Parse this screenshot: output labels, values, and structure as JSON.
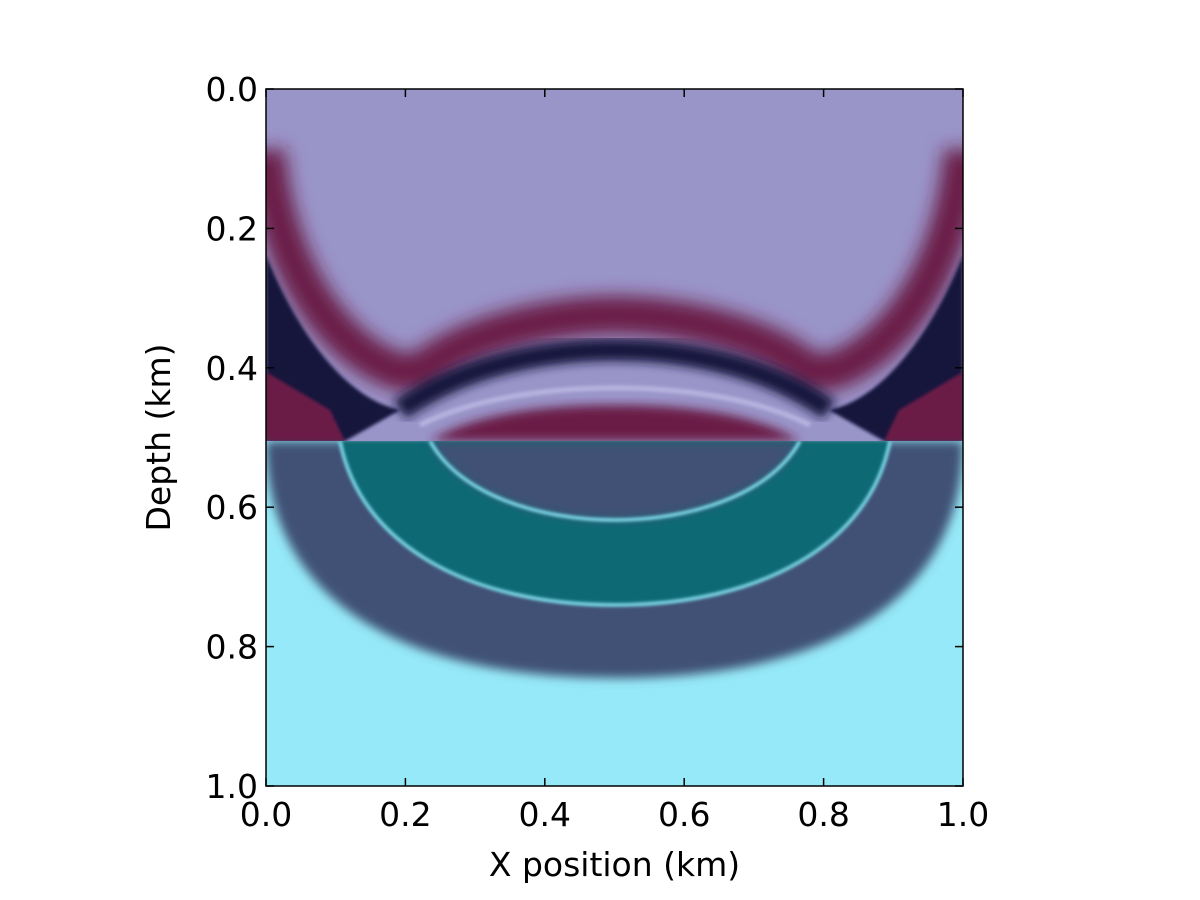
{
  "chart_data": {
    "type": "heatmap",
    "title": "",
    "xlabel": "X position (km)",
    "ylabel": "Depth (km)",
    "xlim": [
      0.0,
      1.0
    ],
    "ylim": [
      1.0,
      0.0
    ],
    "y_inverted": true,
    "x_ticks": [
      "0.0",
      "0.2",
      "0.4",
      "0.6",
      "0.8",
      "1.0"
    ],
    "y_ticks": [
      "0.0",
      "0.2",
      "0.4",
      "0.6",
      "0.8",
      "1.0"
    ],
    "grid": false,
    "legend": "none",
    "interface_depth_km": 0.51,
    "source_x_km": 0.5,
    "upper_layer_colors": {
      "background": "#9a95c8",
      "crest": "#6b1a46",
      "trough": "#12123d"
    },
    "lower_layer_colors": {
      "background": "#96e9f8",
      "inner_band": "#106a74",
      "outer_band": "#3f5174"
    }
  }
}
